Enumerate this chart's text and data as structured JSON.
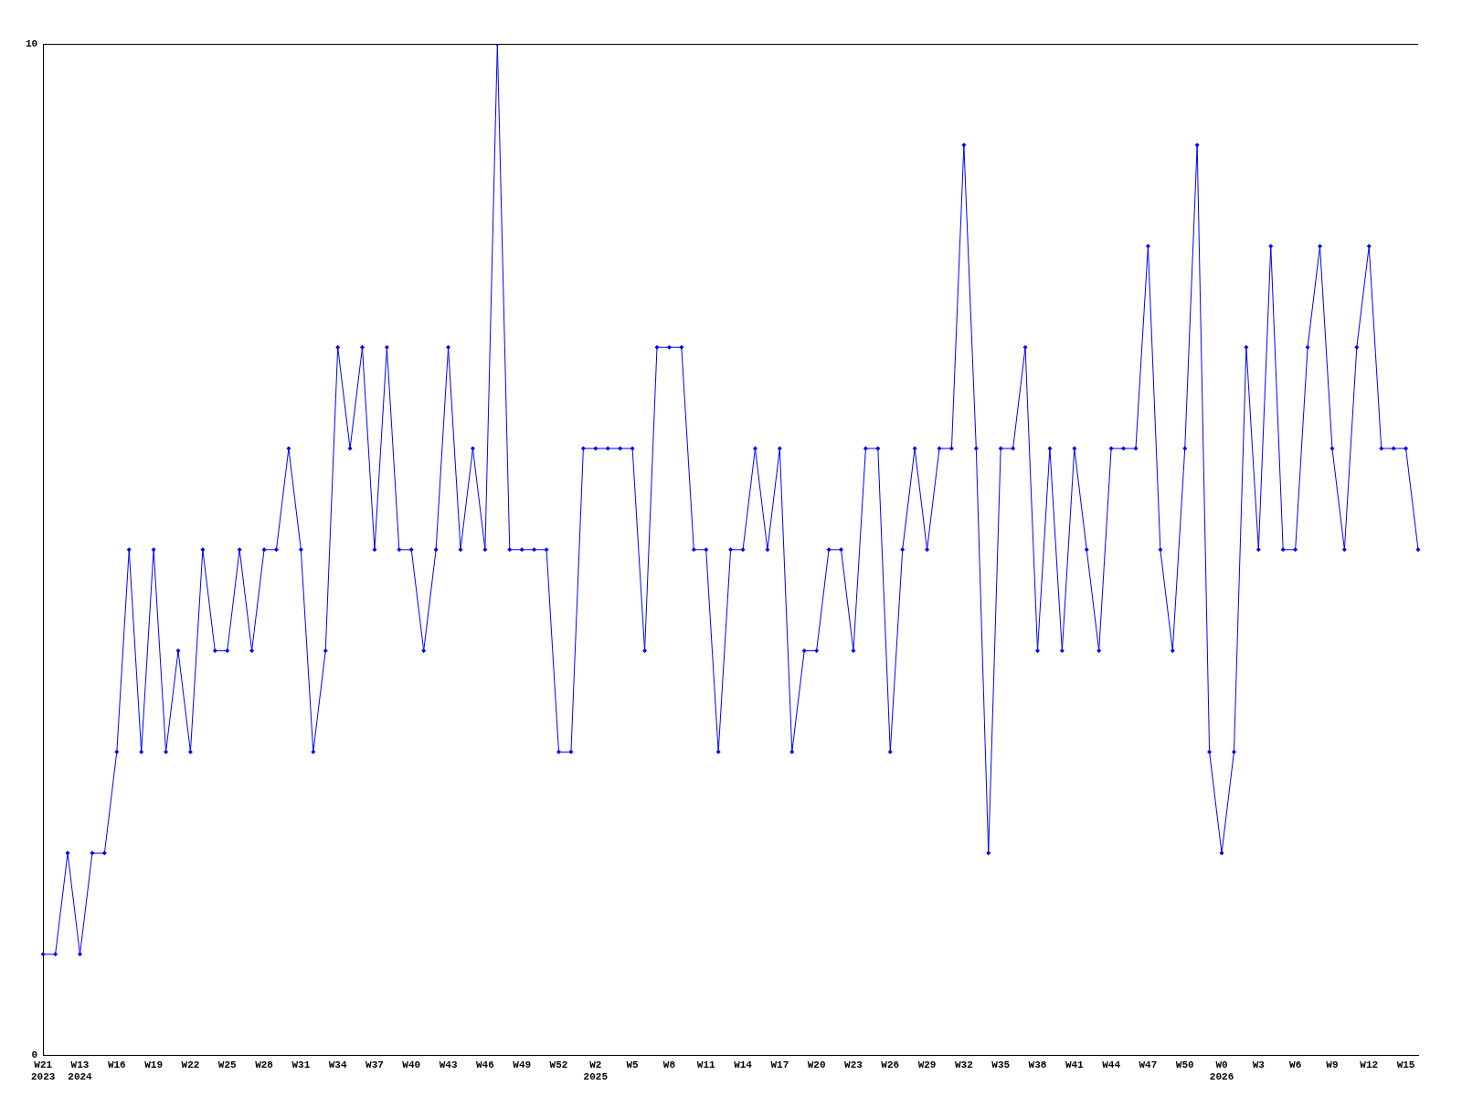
{
  "chart_data": {
    "type": "line",
    "categories": [
      "W21\n2023",
      null,
      null,
      "W13\n2024",
      null,
      null,
      "W16",
      null,
      null,
      "W19",
      null,
      null,
      "W22",
      null,
      null,
      "W25",
      null,
      null,
      "W28",
      null,
      null,
      "W31",
      null,
      null,
      "W34",
      null,
      null,
      "W37",
      null,
      null,
      "W40",
      null,
      null,
      "W43",
      null,
      null,
      "W46",
      null,
      null,
      "W49",
      null,
      null,
      "W52",
      null,
      null,
      "W2\n2025",
      null,
      null,
      "W5",
      null,
      null,
      "W8",
      null,
      null,
      "W11",
      null,
      null,
      "W14",
      null,
      null,
      "W17",
      null,
      null,
      "W20",
      null,
      null,
      "W23",
      null,
      null,
      "W26",
      null,
      null,
      "W29",
      null,
      null,
      "W32",
      null,
      null,
      "W35",
      null,
      null,
      "W38",
      null,
      null,
      "W41",
      null,
      null,
      "W44",
      null,
      null,
      "W47",
      null,
      null,
      "W50",
      null,
      null,
      "W0\n2026",
      null,
      null,
      "W3",
      null,
      null,
      "W6",
      null,
      null,
      "W9",
      null,
      null,
      "W12",
      null,
      null,
      "W15",
      null
    ],
    "series": [
      {
        "color": "#0000ff",
        "values": [
          1,
          1,
          2,
          1,
          2,
          2,
          3,
          5,
          3,
          5,
          3,
          4,
          3,
          5,
          4,
          4,
          5,
          4,
          5,
          5,
          6,
          5,
          3,
          4,
          7,
          6,
          7,
          5,
          7,
          5,
          5,
          4,
          5,
          7,
          5,
          6,
          5,
          10,
          5,
          5,
          5,
          5,
          3,
          3,
          6,
          6,
          6,
          6,
          6,
          4,
          7,
          7,
          7,
          5,
          5,
          3,
          5,
          5,
          6,
          5,
          6,
          3,
          4,
          4,
          5,
          5,
          4,
          6,
          6,
          3,
          5,
          6,
          5,
          6,
          6,
          9,
          6,
          2,
          6,
          6,
          7,
          4,
          6,
          4,
          6,
          5,
          4,
          6,
          6,
          6,
          8,
          5,
          4,
          6,
          9,
          3,
          2,
          3,
          7,
          5,
          8,
          5,
          5,
          7,
          8,
          6,
          5,
          7,
          8,
          6,
          6,
          6,
          5
        ]
      }
    ],
    "ylim": [
      0,
      10
    ],
    "yticks": [
      0,
      10
    ],
    "legend": false,
    "marker": "diamond",
    "line_style": "solid"
  }
}
